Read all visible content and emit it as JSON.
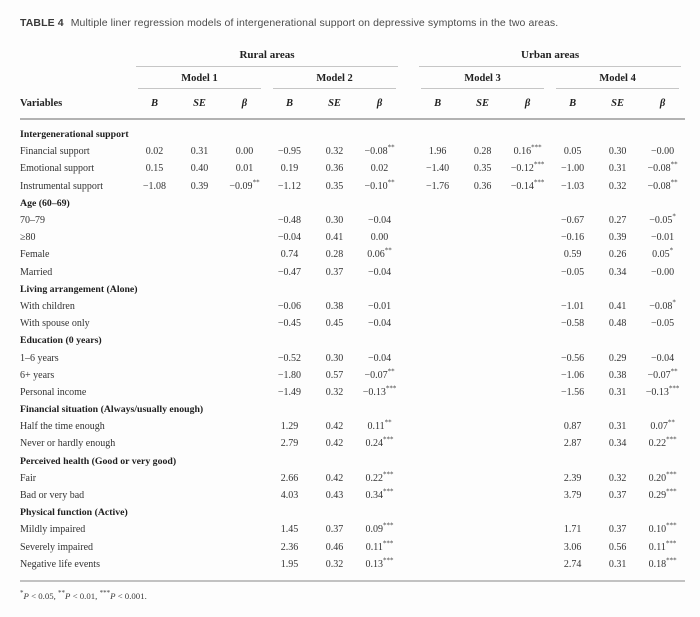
{
  "table": {
    "title_label": "TABLE 4",
    "title_text": "Multiple liner regression models of intergenerational support on depressive symptoms in the two areas.",
    "group_headers": [
      "Rural areas",
      "Urban areas"
    ],
    "model_headers": [
      "Model 1",
      "Model 2",
      "Model 3",
      "Model 4"
    ],
    "col_headers": [
      "B",
      "SE",
      "β"
    ],
    "variables_header": "Variables",
    "rows": [
      {
        "type": "section",
        "label": "Intergenerational support"
      },
      {
        "type": "data",
        "label": "Financial support",
        "values": [
          "0.02",
          "0.31",
          "0.00",
          "−0.95",
          "0.32",
          "−0.08**",
          "1.96",
          "0.28",
          "0.16***",
          "0.05",
          "0.30",
          "−0.00"
        ]
      },
      {
        "type": "data",
        "label": "Emotional support",
        "values": [
          "0.15",
          "0.40",
          "0.01",
          "0.19",
          "0.36",
          "0.02",
          "−1.40",
          "0.35",
          "−0.12***",
          "−1.00",
          "0.31",
          "−0.08**"
        ]
      },
      {
        "type": "data",
        "label": "Instrumental support",
        "values": [
          "−1.08",
          "0.39",
          "−0.09**",
          "−1.12",
          "0.35",
          "−0.10**",
          "−1.76",
          "0.36",
          "−0.14***",
          "−1.03",
          "0.32",
          "−0.08**"
        ]
      },
      {
        "type": "section",
        "label": "Age (60–69)"
      },
      {
        "type": "data",
        "label": "70–79",
        "values": [
          "",
          "",
          "",
          "−0.48",
          "0.30",
          "−0.04",
          "",
          "",
          "",
          "−0.67",
          "0.27",
          "−0.05*"
        ]
      },
      {
        "type": "data",
        "label": "≥80",
        "values": [
          "",
          "",
          "",
          "−0.04",
          "0.41",
          "0.00",
          "",
          "",
          "",
          "−0.16",
          "0.39",
          "−0.01"
        ]
      },
      {
        "type": "data",
        "label": "Female",
        "values": [
          "",
          "",
          "",
          "0.74",
          "0.28",
          "0.06**",
          "",
          "",
          "",
          "0.59",
          "0.26",
          "0.05*"
        ]
      },
      {
        "type": "data",
        "label": "Married",
        "values": [
          "",
          "",
          "",
          "−0.47",
          "0.37",
          "−0.04",
          "",
          "",
          "",
          "−0.05",
          "0.34",
          "−0.00"
        ]
      },
      {
        "type": "section",
        "label": "Living arrangement (Alone)"
      },
      {
        "type": "data",
        "label": "With children",
        "values": [
          "",
          "",
          "",
          "−0.06",
          "0.38",
          "−0.01",
          "",
          "",
          "",
          "−1.01",
          "0.41",
          "−0.08*"
        ]
      },
      {
        "type": "data",
        "label": "With spouse only",
        "values": [
          "",
          "",
          "",
          "−0.45",
          "0.45",
          "−0.04",
          "",
          "",
          "",
          "−0.58",
          "0.48",
          "−0.05"
        ]
      },
      {
        "type": "section",
        "label": "Education (0 years)"
      },
      {
        "type": "data",
        "label": "1–6 years",
        "values": [
          "",
          "",
          "",
          "−0.52",
          "0.30",
          "−0.04",
          "",
          "",
          "",
          "−0.56",
          "0.29",
          "−0.04"
        ]
      },
      {
        "type": "data",
        "label": "6+ years",
        "values": [
          "",
          "",
          "",
          "−1.80",
          "0.57",
          "−0.07**",
          "",
          "",
          "",
          "−1.06",
          "0.38",
          "−0.07**"
        ]
      },
      {
        "type": "data",
        "label": "Personal income",
        "values": [
          "",
          "",
          "",
          "−1.49",
          "0.32",
          "−0.13***",
          "",
          "",
          "",
          "−1.56",
          "0.31",
          "−0.13***"
        ]
      },
      {
        "type": "section",
        "label": "Financial situation (Always/usually enough)"
      },
      {
        "type": "data",
        "label": "Half the time enough",
        "values": [
          "",
          "",
          "",
          "1.29",
          "0.42",
          "0.11**",
          "",
          "",
          "",
          "0.87",
          "0.31",
          "0.07**"
        ]
      },
      {
        "type": "data",
        "label": "Never or hardly enough",
        "values": [
          "",
          "",
          "",
          "2.79",
          "0.42",
          "0.24***",
          "",
          "",
          "",
          "2.87",
          "0.34",
          "0.22***"
        ]
      },
      {
        "type": "section",
        "label": "Perceived health (Good or very good)"
      },
      {
        "type": "data",
        "label": "Fair",
        "values": [
          "",
          "",
          "",
          "2.66",
          "0.42",
          "0.22***",
          "",
          "",
          "",
          "2.39",
          "0.32",
          "0.20***"
        ]
      },
      {
        "type": "data",
        "label": "Bad or very bad",
        "values": [
          "",
          "",
          "",
          "4.03",
          "0.43",
          "0.34***",
          "",
          "",
          "",
          "3.79",
          "0.37",
          "0.29***"
        ]
      },
      {
        "type": "section",
        "label": "Physical function (Active)"
      },
      {
        "type": "data",
        "label": "Mildly impaired",
        "values": [
          "",
          "",
          "",
          "1.45",
          "0.37",
          "0.09***",
          "",
          "",
          "",
          "1.71",
          "0.37",
          "0.10***"
        ]
      },
      {
        "type": "data",
        "label": "Severely impaired",
        "values": [
          "",
          "",
          "",
          "2.36",
          "0.46",
          "0.11***",
          "",
          "",
          "",
          "3.06",
          "0.56",
          "0.11***"
        ]
      },
      {
        "type": "data",
        "label": "Negative life events",
        "values": [
          "",
          "",
          "",
          "1.95",
          "0.32",
          "0.13***",
          "",
          "",
          "",
          "2.74",
          "0.31",
          "0.18***"
        ]
      }
    ],
    "footnote_parts": [
      {
        "stars": "*",
        "text": "P < 0.05, "
      },
      {
        "stars": "**",
        "text": "P < 0.01, "
      },
      {
        "stars": "***",
        "text": "P < 0.001."
      }
    ]
  }
}
